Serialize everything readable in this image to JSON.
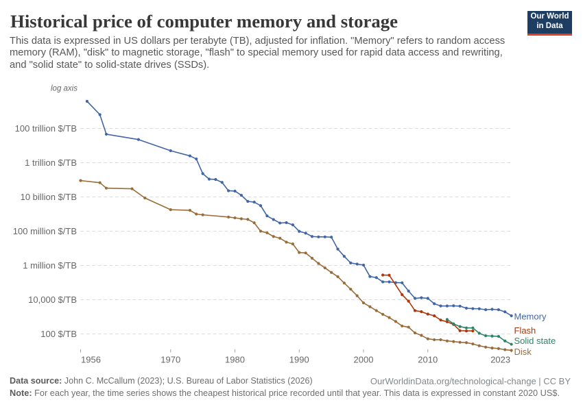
{
  "header": {
    "title": "Historical price of computer memory and storage",
    "subtitle": "This data is expressed in US dollars per terabyte (TB), adjusted for inflation. \"Memory\" refers to random access memory (RAM), \"disk\" to magnetic storage, \"flash\" to special memory used for rapid data access and rewriting, and \"solid state\" to solid-state drives (SSDs).",
    "subtitle_lines": [
      "This data is expressed in US dollars per terabyte (TB), adjusted for inflation. \"Memory\" refers to random access",
      "memory (RAM), \"disk\" to magnetic storage, \"flash\" to special memory used for rapid data access and rewriting,",
      "and \"solid state\" to solid-state drives (SSDs)."
    ]
  },
  "logo": {
    "line1": "Our World",
    "line2": "in Data",
    "background_color": "#1d3d63",
    "accent_color": "#e63e19"
  },
  "chart_data": {
    "type": "line",
    "x_scale": "linear-years",
    "y_scale": "log",
    "axis_annotation": "log axis",
    "x_ticks": [
      1956,
      1970,
      1980,
      1990,
      2000,
      2010,
      2023
    ],
    "y_ticks": [
      {
        "label": "100 trillion $/TB",
        "value": 100000000000000.0
      },
      {
        "label": "1 trillion $/TB",
        "value": 1000000000000.0
      },
      {
        "label": "10 billion $/TB",
        "value": 10000000000.0
      },
      {
        "label": "100 million $/TB",
        "value": 100000000.0
      },
      {
        "label": "1 million $/TB",
        "value": 1000000.0
      },
      {
        "label": "10,000 $/TB",
        "value": 10000.0
      },
      {
        "label": "100 $/TB",
        "value": 100.0
      }
    ],
    "x_range": [
      1956,
      2023
    ],
    "y_range": [
      10.0,
      1e+16
    ],
    "grid": "dashed-horizontal",
    "legend_position": "right-end-labels",
    "series": [
      {
        "name": "Memory",
        "color": "#4165a5",
        "points": [
          [
            1957,
            3850000000000000.0
          ],
          [
            1959,
            640000000000000.0
          ],
          [
            1960,
            46000000000000.0
          ],
          [
            1965,
            22500000000000.0
          ],
          [
            1970,
            5000000000000.0
          ],
          [
            1973,
            2500000000000.0
          ],
          [
            1974,
            1650000000000.0
          ],
          [
            1975,
            230000000000.0
          ],
          [
            1976,
            110000000000.0
          ],
          [
            1977,
            105000000000.0
          ],
          [
            1978,
            71000000000.0
          ],
          [
            1979,
            23000000000.0
          ],
          [
            1980,
            22000000000.0
          ],
          [
            1981,
            12500000000.0
          ],
          [
            1982,
            5500000000.0
          ],
          [
            1983,
            5000000000.0
          ],
          [
            1984,
            3100000000.0
          ],
          [
            1985,
            780000000.0
          ],
          [
            1986,
            480000000.0
          ],
          [
            1987,
            300000000.0
          ],
          [
            1988,
            315000000.0
          ],
          [
            1989,
            235000000.0
          ],
          [
            1990,
            98000000.0
          ],
          [
            1991,
            77000000.0
          ],
          [
            1992,
            49000000.0
          ],
          [
            1993,
            46500000.0
          ],
          [
            1994,
            46500000.0
          ],
          [
            1995,
            45000000.0
          ],
          [
            1996,
            9000000.0
          ],
          [
            1997,
            3400000.0
          ],
          [
            1998,
            1400000.0
          ],
          [
            1999,
            1200000.0
          ],
          [
            2000,
            1050000.0
          ],
          [
            2001,
            225000.0
          ],
          [
            2002,
            195000.0
          ],
          [
            2003,
            110000.0
          ],
          [
            2004,
            110000.0
          ],
          [
            2005,
            99000.0
          ],
          [
            2006,
            97000.0
          ],
          [
            2007,
            32000.0
          ],
          [
            2008,
            12000.0
          ],
          [
            2009,
            13000.0
          ],
          [
            2010,
            12000.0
          ],
          [
            2011,
            5800.0
          ],
          [
            2012,
            4300.0
          ],
          [
            2013,
            4300.0
          ],
          [
            2014,
            4400.0
          ],
          [
            2015,
            4200.0
          ],
          [
            2016,
            3200.0
          ],
          [
            2017,
            3000.0
          ],
          [
            2018,
            2950.0
          ],
          [
            2019,
            2600.0
          ],
          [
            2020,
            2750.0
          ],
          [
            2021,
            2600.0
          ],
          [
            2022,
            1950.0
          ],
          [
            2023,
            1150.0
          ]
        ]
      },
      {
        "name": "Flash",
        "color": "#b13507",
        "points": [
          [
            2003,
            275000.0
          ],
          [
            2004,
            270000.0
          ],
          [
            2006,
            19500.0
          ],
          [
            2007,
            8200.0
          ],
          [
            2008,
            2300.0
          ],
          [
            2009,
            2000.0
          ],
          [
            2010,
            1450.0
          ],
          [
            2011,
            1150.0
          ],
          [
            2012,
            650.0
          ],
          [
            2013,
            510.0
          ],
          [
            2014,
            360.0
          ],
          [
            2015,
            155.0
          ],
          [
            2016,
            150.0
          ],
          [
            2017,
            150.0
          ]
        ]
      },
      {
        "name": "Disk",
        "color": "#996d39",
        "points": [
          [
            1956,
            90000000000.0
          ],
          [
            1959,
            68000000000.0
          ],
          [
            1960,
            32500000000.0
          ],
          [
            1964,
            30000000000.0
          ],
          [
            1966,
            8700000000.0
          ],
          [
            1970,
            1800000000.0
          ],
          [
            1973,
            1650000000.0
          ],
          [
            1974,
            1000000000.0
          ],
          [
            1975,
            900000000.0
          ],
          [
            1979,
            670000000.0
          ],
          [
            1980,
            600000000.0
          ],
          [
            1981,
            530000000.0
          ],
          [
            1982,
            490000000.0
          ],
          [
            1983,
            310000000.0
          ],
          [
            1984,
            100000000.0
          ],
          [
            1985,
            80000000.0
          ],
          [
            1986,
            49000000.0
          ],
          [
            1987,
            39000000.0
          ],
          [
            1988,
            23000000.0
          ],
          [
            1989,
            18000000.0
          ],
          [
            1990,
            5700000.0
          ],
          [
            1991,
            5350000.0
          ],
          [
            1992,
            2650000.0
          ],
          [
            1993,
            1300000.0
          ],
          [
            1994,
            720000.0
          ],
          [
            1995,
            390000.0
          ],
          [
            1996,
            220000.0
          ],
          [
            1997,
            94000.0
          ],
          [
            1998,
            41000.0
          ],
          [
            1999,
            17000.0
          ],
          [
            2000,
            6500.0
          ],
          [
            2001,
            3900.0
          ],
          [
            2002,
            2300.0
          ],
          [
            2003,
            1400.0
          ],
          [
            2004,
            900.0
          ],
          [
            2005,
            535.0
          ],
          [
            2006,
            290.0
          ],
          [
            2007,
            250.0
          ],
          [
            2008,
            115.0
          ],
          [
            2009,
            82.0
          ],
          [
            2010,
            52.0
          ],
          [
            2011,
            46.0
          ],
          [
            2012,
            46.0
          ],
          [
            2013,
            39.0
          ],
          [
            2014,
            36.0
          ],
          [
            2015,
            32.5
          ],
          [
            2016,
            31.0
          ],
          [
            2017,
            26.0
          ],
          [
            2018,
            20.5
          ],
          [
            2019,
            17.0
          ],
          [
            2020,
            15.0
          ],
          [
            2021,
            14.0
          ],
          [
            2022,
            12.0
          ],
          [
            2023,
            11.0
          ]
        ]
      },
      {
        "name": "Solid state",
        "color": "#2c8465",
        "points": [
          [
            2013,
            700.0
          ],
          [
            2014,
            390.0
          ],
          [
            2015,
            270.0
          ],
          [
            2016,
            225.0
          ],
          [
            2017,
            225.0
          ],
          [
            2018,
            110.0
          ],
          [
            2019,
            78.0
          ],
          [
            2020,
            75.0
          ],
          [
            2021,
            72.0
          ],
          [
            2022,
            39.0
          ],
          [
            2023,
            25.0
          ]
        ]
      }
    ]
  },
  "footer": {
    "source_label": "Data source:",
    "source_text": " John C. McCallum (2023); U.S. Bureau of Labor Statistics (2026)",
    "link_text": "OurWorldinData.org/technological-change | CC BY",
    "note_label": "Note:",
    "note_text": " For each year, the time series shows the cheapest historical price recorded until that year. This data is expressed in constant 2020 US$."
  }
}
